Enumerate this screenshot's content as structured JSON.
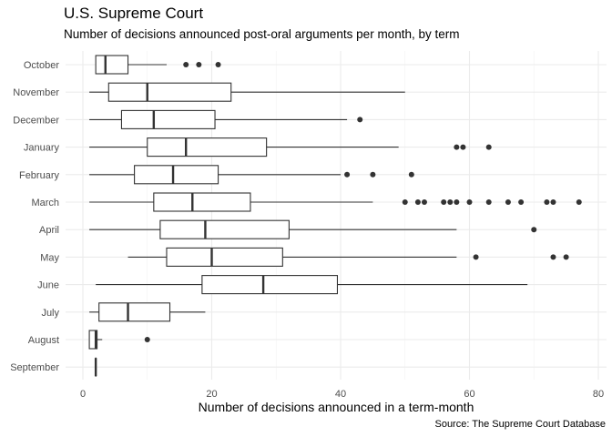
{
  "chart_data": {
    "type": "boxplot",
    "title": "U.S. Supreme Court",
    "subtitle": "Number of decisions announced post-oral arguments per month, by term",
    "xlabel": "Number of decisions announced in a term-month",
    "ylabel": "",
    "caption": "Source: The Supreme Court Database",
    "xlim": [
      -1.5,
      80.5
    ],
    "xticks": [
      0,
      20,
      40,
      60,
      80
    ],
    "grid": true,
    "categories": [
      "October",
      "November",
      "December",
      "January",
      "February",
      "March",
      "April",
      "May",
      "June",
      "July",
      "August",
      "September"
    ],
    "boxes": [
      {
        "label": "October",
        "whisker_low": 2,
        "q1": 2,
        "median": 3.5,
        "q3": 7,
        "whisker_high": 13,
        "outliers": [
          16,
          18,
          21
        ]
      },
      {
        "label": "November",
        "whisker_low": 1,
        "q1": 4,
        "median": 10,
        "q3": 23,
        "whisker_high": 50,
        "outliers": []
      },
      {
        "label": "December",
        "whisker_low": 1,
        "q1": 6,
        "median": 11,
        "q3": 20.5,
        "whisker_high": 41,
        "outliers": [
          43
        ]
      },
      {
        "label": "January",
        "whisker_low": 1,
        "q1": 10,
        "median": 16,
        "q3": 28.5,
        "whisker_high": 49,
        "outliers": [
          58,
          59,
          63
        ]
      },
      {
        "label": "February",
        "whisker_low": 1,
        "q1": 8,
        "median": 14,
        "q3": 21,
        "whisker_high": 40,
        "outliers": [
          41,
          45,
          51
        ]
      },
      {
        "label": "March",
        "whisker_low": 1,
        "q1": 11,
        "median": 17,
        "q3": 26,
        "whisker_high": 45,
        "outliers": [
          50,
          52,
          53,
          56,
          57,
          58,
          60,
          63,
          66,
          68,
          72,
          73,
          77
        ]
      },
      {
        "label": "April",
        "whisker_low": 1,
        "q1": 12,
        "median": 19,
        "q3": 32,
        "whisker_high": 58,
        "outliers": [
          70
        ]
      },
      {
        "label": "May",
        "whisker_low": 7,
        "q1": 13,
        "median": 20,
        "q3": 31,
        "whisker_high": 58,
        "outliers": [
          61,
          73,
          75
        ]
      },
      {
        "label": "June",
        "whisker_low": 2,
        "q1": 18.5,
        "median": 28,
        "q3": 39.5,
        "whisker_high": 69,
        "outliers": []
      },
      {
        "label": "July",
        "whisker_low": 1,
        "q1": 2.5,
        "median": 7,
        "q3": 13.5,
        "whisker_high": 19,
        "outliers": []
      },
      {
        "label": "August",
        "whisker_low": 1,
        "q1": 1,
        "median": 2,
        "q3": 2.2,
        "whisker_high": 3,
        "outliers": [
          10
        ]
      },
      {
        "label": "September",
        "whisker_low": 2,
        "q1": 2,
        "median": 2,
        "q3": 2,
        "whisker_high": 2,
        "outliers": []
      }
    ]
  }
}
